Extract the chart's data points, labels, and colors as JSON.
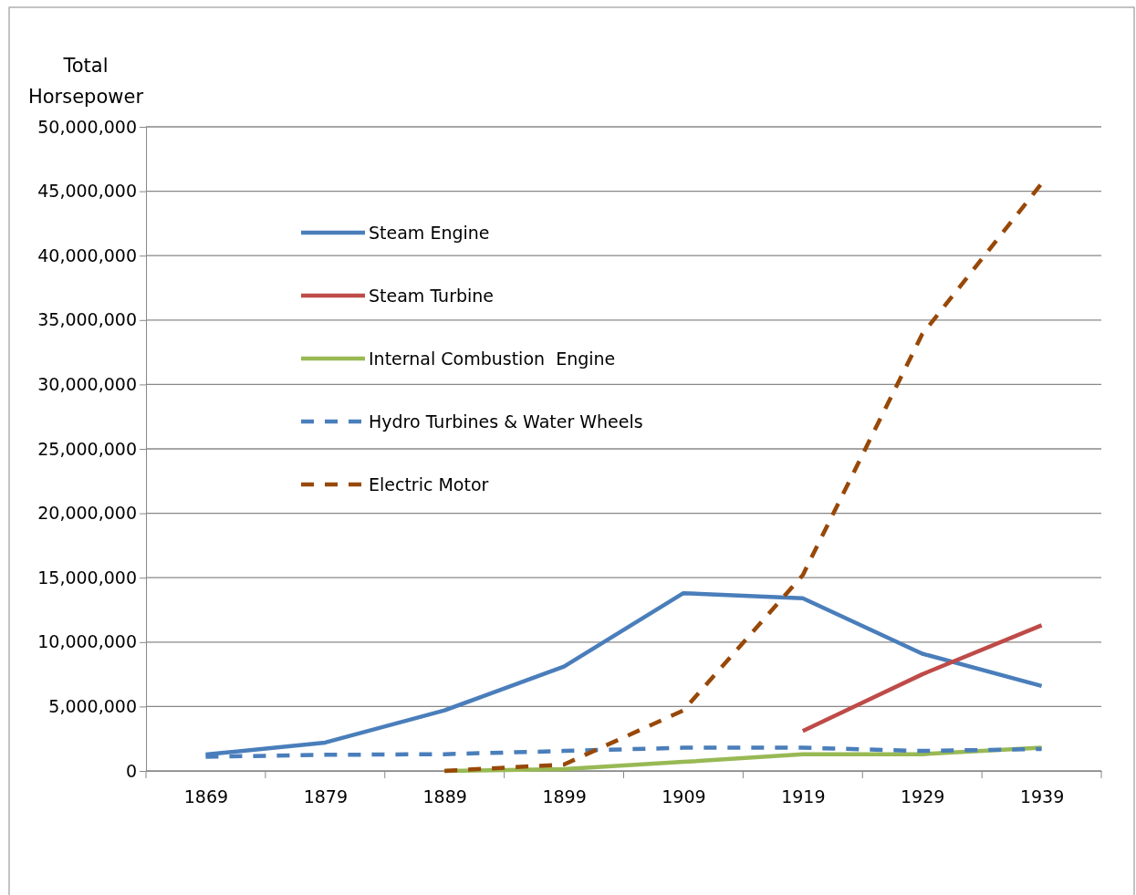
{
  "chart_data": {
    "type": "line",
    "ylabel": "Total Horsepower",
    "categories": [
      "1869",
      "1879",
      "1889",
      "1899",
      "1909",
      "1919",
      "1929",
      "1939"
    ],
    "series": [
      {
        "name": "Steam Engine",
        "color": "#4a7ebb",
        "line_style": "solid",
        "values": [
          1270000,
          2200000,
          4700000,
          8100000,
          13800000,
          13400000,
          9100000,
          6600000
        ]
      },
      {
        "name": "Steam Turbine",
        "color": "#be4b48",
        "line_style": "solid",
        "values": [
          null,
          null,
          null,
          null,
          null,
          3100000,
          7500000,
          11300000
        ]
      },
      {
        "name": "Internal Combustion  Engine",
        "color": "#98b954",
        "line_style": "solid",
        "values": [
          null,
          null,
          0,
          150000,
          700000,
          1300000,
          1300000,
          1800000
        ]
      },
      {
        "name": "Hydro Turbines & Water Wheels",
        "color": "#4a7ebb",
        "line_style": "dashed",
        "values": [
          1100000,
          1250000,
          1300000,
          1550000,
          1800000,
          1800000,
          1550000,
          1700000
        ]
      },
      {
        "name": "Electric Motor",
        "color": "#984807",
        "line_style": "dashed",
        "values": [
          null,
          null,
          0,
          500000,
          4700000,
          15200000,
          33900000,
          45600000
        ]
      }
    ],
    "ylim": [
      0,
      50000000
    ],
    "yticks": [
      {
        "value": 0,
        "label": "0"
      },
      {
        "value": 5000000,
        "label": "5,000,000"
      },
      {
        "value": 10000000,
        "label": "10,000,000"
      },
      {
        "value": 15000000,
        "label": "15,000,000"
      },
      {
        "value": 20000000,
        "label": "20,000,000"
      },
      {
        "value": 25000000,
        "label": "25,000,000"
      },
      {
        "value": 30000000,
        "label": "30,000,000"
      },
      {
        "value": 35000000,
        "label": "35,000,000"
      },
      {
        "value": 40000000,
        "label": "40,000,000"
      },
      {
        "value": 45000000,
        "label": "45,000,000"
      },
      {
        "value": 50000000,
        "label": "50,000,000"
      }
    ],
    "grid": "y",
    "legend": "top left",
    "marker": "none"
  }
}
